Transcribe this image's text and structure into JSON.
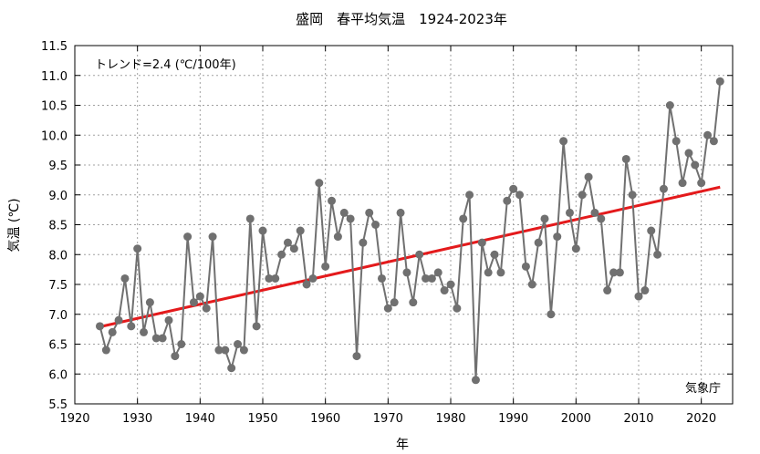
{
  "chart_data": {
    "type": "line",
    "title": "盛岡　春平均気温　1924-2023年",
    "xlabel": "年",
    "ylabel": "気温 (℃)",
    "xlim": [
      1920,
      2025
    ],
    "ylim": [
      5.5,
      11.5
    ],
    "xticks": [
      1920,
      1930,
      1940,
      1950,
      1960,
      1970,
      1980,
      1990,
      2000,
      2010,
      2020
    ],
    "yticks": [
      5.5,
      6.0,
      6.5,
      7.0,
      7.5,
      8.0,
      8.5,
      9.0,
      9.5,
      10.0,
      10.5,
      11.0,
      11.5
    ],
    "ytick_labels": [
      "5.5",
      "6.0",
      "6.5",
      "7.0",
      "7.5",
      "8.0",
      "8.5",
      "9.0",
      "9.5",
      "10.0",
      "10.5",
      "11.0",
      "11.5"
    ],
    "grid": true,
    "trend_label": "トレンド=2.4 (℃/100年)",
    "source_label": "気象庁",
    "series": [
      {
        "color": "#707070",
        "x": [
          1924,
          1925,
          1926,
          1927,
          1928,
          1929,
          1930,
          1931,
          1932,
          1933,
          1934,
          1935,
          1936,
          1937,
          1938,
          1939,
          1940,
          1941,
          1942,
          1943,
          1944,
          1945,
          1946,
          1947,
          1948,
          1949,
          1950,
          1951,
          1952,
          1953,
          1954,
          1955,
          1956,
          1957,
          1958,
          1959,
          1960,
          1961,
          1962,
          1963,
          1964,
          1965,
          1966,
          1967,
          1968,
          1969,
          1970,
          1971,
          1972,
          1973,
          1974,
          1975,
          1976,
          1977,
          1978,
          1979,
          1980,
          1981,
          1982,
          1983,
          1984,
          1985,
          1986,
          1987,
          1988,
          1989,
          1990,
          1991,
          1992,
          1993,
          1994,
          1995,
          1996,
          1997,
          1998,
          1999,
          2000,
          2001,
          2002,
          2003,
          2004,
          2005,
          2006,
          2007,
          2008,
          2009,
          2010,
          2011,
          2012,
          2013,
          2014,
          2015,
          2016,
          2017,
          2018,
          2019,
          2020,
          2021,
          2022,
          2023
        ],
        "values": [
          6.8,
          6.4,
          6.7,
          6.9,
          7.6,
          6.8,
          8.1,
          6.7,
          7.2,
          6.6,
          6.6,
          6.9,
          6.3,
          6.5,
          8.3,
          7.2,
          7.3,
          7.1,
          8.3,
          6.4,
          6.4,
          6.1,
          6.5,
          6.4,
          8.6,
          6.8,
          8.4,
          7.6,
          7.6,
          8.0,
          8.2,
          8.1,
          8.4,
          7.5,
          7.6,
          9.2,
          7.8,
          8.9,
          8.3,
          8.7,
          8.6,
          6.3,
          8.2,
          8.7,
          8.5,
          7.6,
          7.1,
          7.2,
          8.7,
          7.7,
          7.2,
          8.0,
          7.6,
          7.6,
          7.7,
          7.4,
          7.5,
          7.1,
          8.6,
          9.0,
          5.9,
          8.2,
          7.7,
          8.0,
          7.7,
          8.9,
          9.1,
          9.0,
          7.8,
          7.5,
          8.2,
          8.6,
          7.0,
          8.3,
          9.9,
          8.7,
          8.1,
          9.0,
          9.3,
          8.7,
          8.6,
          7.4,
          7.7,
          7.7,
          9.6,
          9.0,
          7.3,
          7.4,
          8.4,
          8.0,
          9.1,
          10.5,
          9.9,
          9.2,
          9.7,
          9.5,
          9.2,
          10.0,
          9.9,
          10.9
        ]
      }
    ],
    "trend": {
      "color": "#e41a1c",
      "x": [
        1924,
        2023
      ],
      "values": [
        6.79,
        9.13
      ]
    }
  }
}
